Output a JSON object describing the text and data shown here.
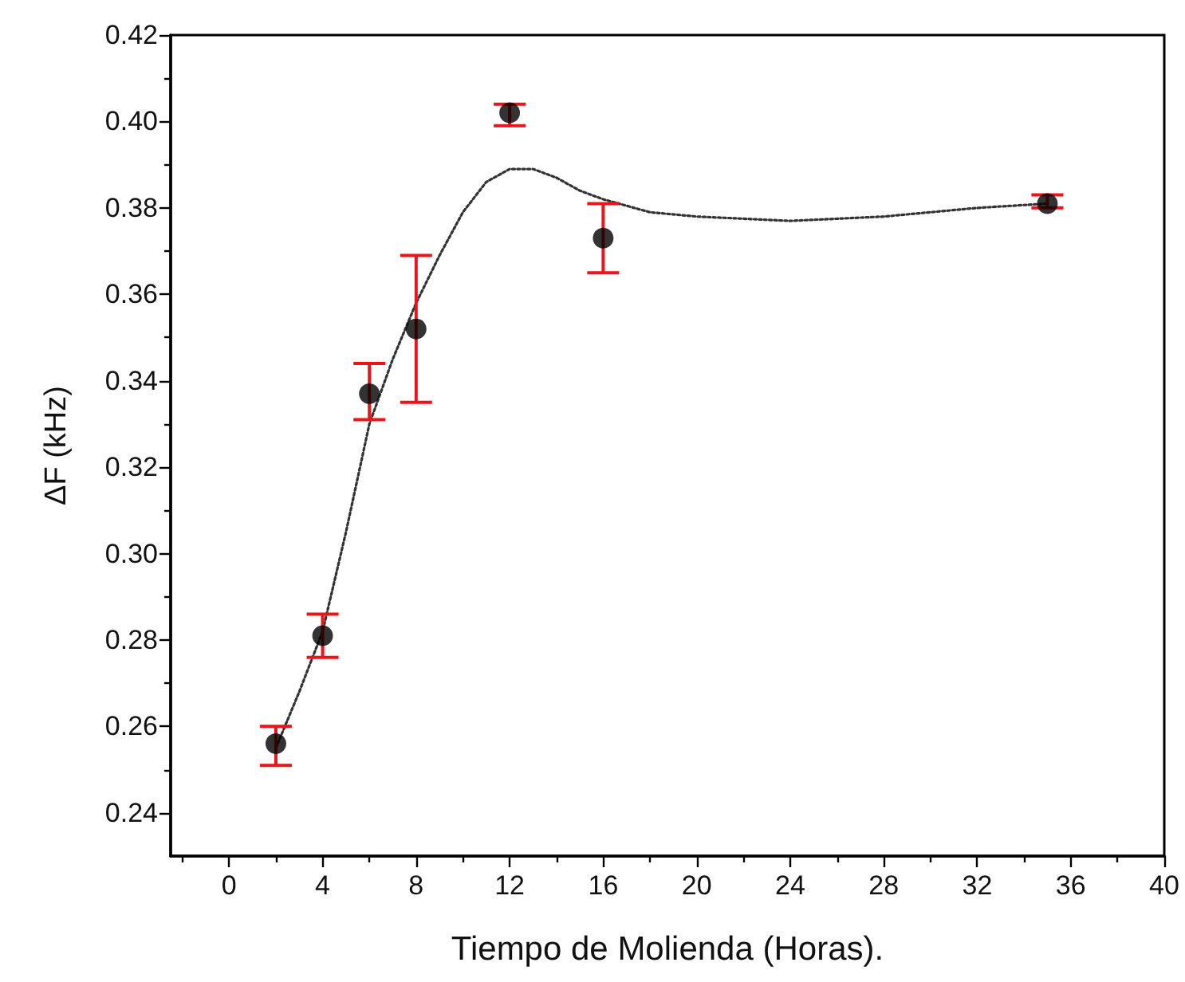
{
  "chart_data": {
    "type": "scatter",
    "xlabel": "Tiempo de Molienda (Horas).",
    "ylabel": "ΔF (kHz)",
    "xlim": [
      -2.5,
      40
    ],
    "xticks": [
      0,
      4,
      8,
      12,
      16,
      20,
      24,
      28,
      32,
      36,
      40
    ],
    "ylim": [
      0.23,
      0.42
    ],
    "yticks": [
      0.24,
      0.26,
      0.28,
      {
        "value": 0.3,
        "label": "0.30"
      },
      0.32,
      0.34,
      0.36,
      0.38,
      {
        "value": 0.4,
        "label": "0.40"
      },
      0.42
    ],
    "grid": false,
    "marker": "circle",
    "series": [
      {
        "color": "#000000",
        "x": [
          2,
          4,
          6,
          8,
          12,
          16,
          35
        ],
        "values": [
          0.256,
          0.281,
          0.337,
          0.352,
          0.402,
          0.373,
          0.381
        ],
        "errors": [
          [
            0.251,
            0.26
          ],
          [
            0.276,
            0.286
          ],
          [
            0.331,
            0.344
          ],
          [
            0.335,
            0.369
          ],
          [
            0.399,
            0.404
          ],
          [
            0.365,
            0.381
          ],
          [
            0.38,
            0.383
          ]
        ]
      },
      {
        "type": "line",
        "color": "#333333",
        "line_style": "dotted",
        "marker": "none",
        "x": [
          2,
          3,
          4,
          5,
          6,
          7,
          8,
          9,
          10,
          11,
          12,
          13,
          14,
          15,
          16,
          18,
          20,
          24,
          28,
          32,
          35
        ],
        "values": [
          0.255,
          0.268,
          0.282,
          0.305,
          0.33,
          0.345,
          0.358,
          0.369,
          0.379,
          0.386,
          0.389,
          0.389,
          0.387,
          0.384,
          0.382,
          0.379,
          0.378,
          0.377,
          0.378,
          0.38,
          0.381
        ]
      }
    ]
  }
}
